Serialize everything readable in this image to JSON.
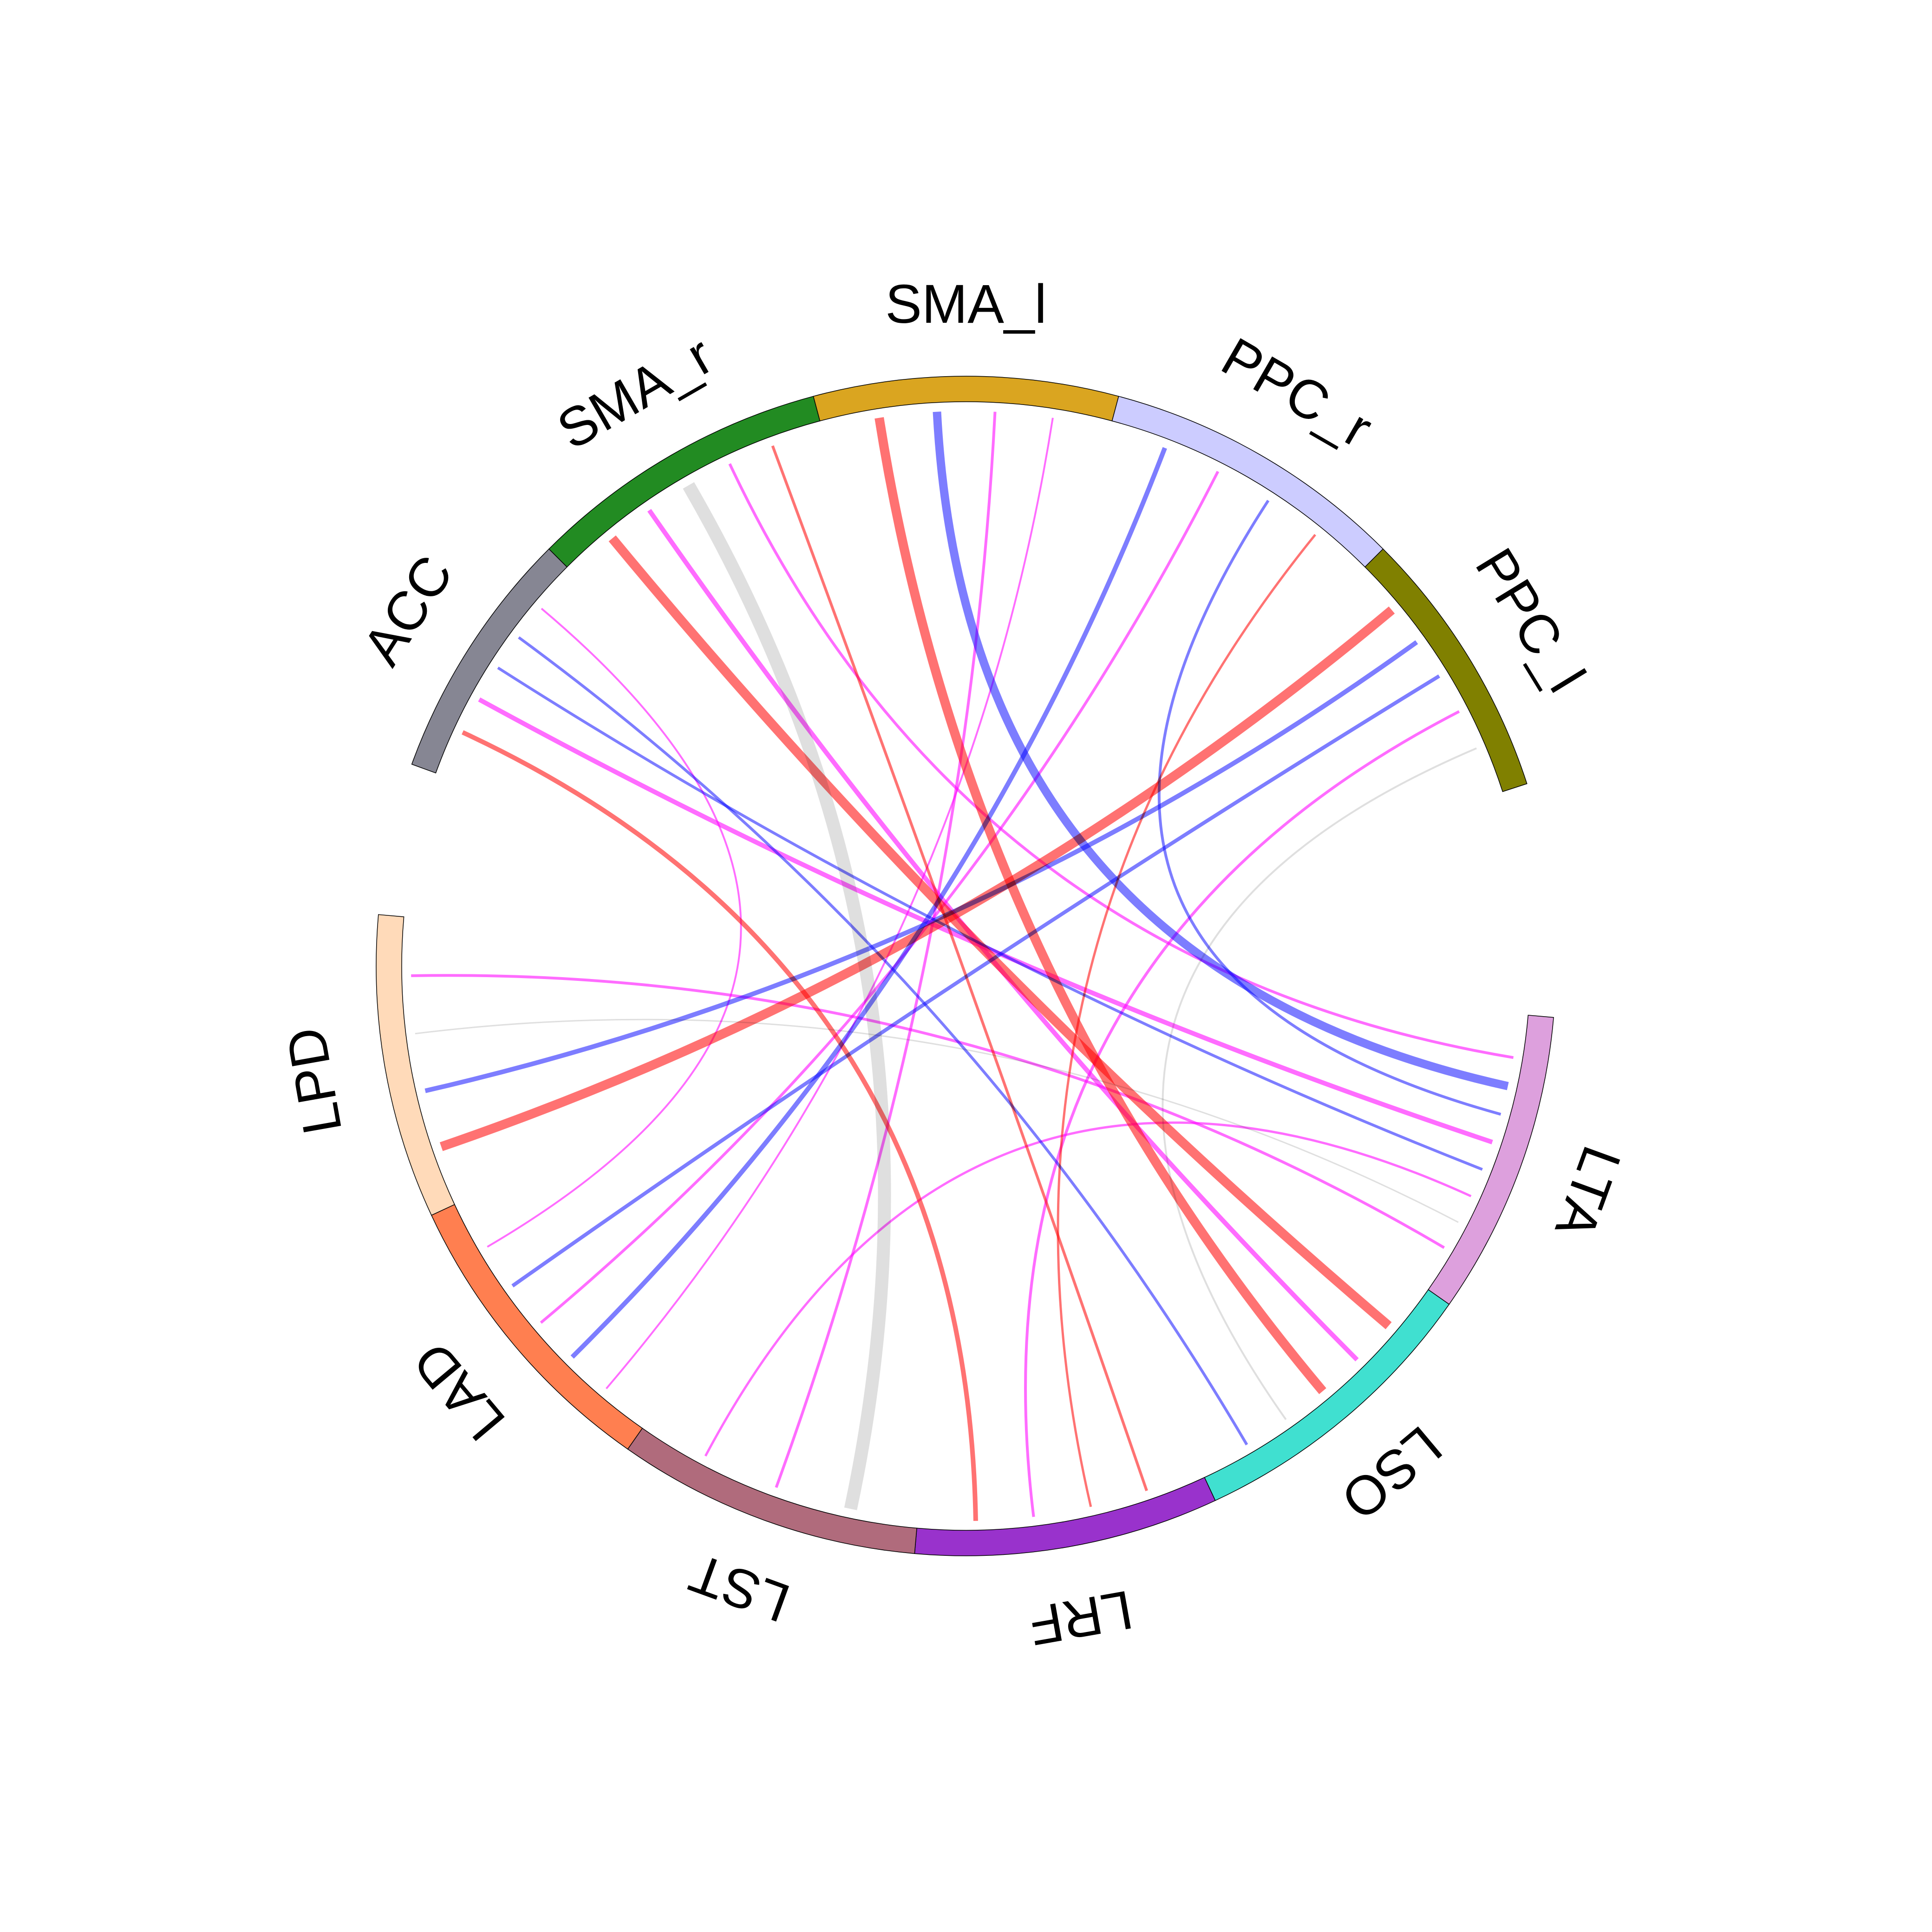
{
  "chart_data": {
    "type": "chord",
    "sectors": [
      {
        "name": "ACC",
        "color": "#868693"
      },
      {
        "name": "SMA_r",
        "color": "#228B22"
      },
      {
        "name": "SMA_l",
        "color": "#DAA520"
      },
      {
        "name": "PPC_r",
        "color": "#CCCCFF"
      },
      {
        "name": "PPC_l",
        "color": "#808000"
      },
      {
        "name": "LTA",
        "color": "#DDA0DD"
      },
      {
        "name": "LSO",
        "color": "#40E0D0"
      },
      {
        "name": "LRF",
        "color": "#9932CC"
      },
      {
        "name": "LST",
        "color": "#B06B7C"
      },
      {
        "name": "LAD",
        "color": "#FF7F50"
      },
      {
        "name": "LPD",
        "color": "#FFDAB9"
      }
    ],
    "link_colors": {
      "red": "#FF3B3B",
      "blue": "#4B4BFF",
      "magenta": "#FF33FF",
      "grey": "#D9D9D9"
    },
    "links": [
      {
        "from": "SMA_r",
        "to": "LSO",
        "color": "red",
        "width": 20
      },
      {
        "from": "SMA_r",
        "to": "LSO",
        "color": "magenta",
        "width": 10
      },
      {
        "from": "SMA_r",
        "to": "LST",
        "color": "grey",
        "width": 28
      },
      {
        "from": "SMA_r",
        "to": "LTA",
        "color": "magenta",
        "width": 6
      },
      {
        "from": "SMA_r",
        "to": "LRF",
        "color": "red",
        "width": 6
      },
      {
        "from": "SMA_l",
        "to": "LSO",
        "color": "red",
        "width": 20
      },
      {
        "from": "SMA_l",
        "to": "LTA",
        "color": "blue",
        "width": 18
      },
      {
        "from": "SMA_l",
        "to": "LST",
        "color": "magenta",
        "width": 6
      },
      {
        "from": "SMA_l",
        "to": "LAD",
        "color": "magenta",
        "width": 4
      },
      {
        "from": "PPC_r",
        "to": "LAD",
        "color": "blue",
        "width": 10
      },
      {
        "from": "PPC_r",
        "to": "LAD",
        "color": "magenta",
        "width": 6
      },
      {
        "from": "PPC_r",
        "to": "LTA",
        "color": "blue",
        "width": 6
      },
      {
        "from": "PPC_r",
        "to": "LRF",
        "color": "red",
        "width": 5
      },
      {
        "from": "PPC_l",
        "to": "LPD",
        "color": "red",
        "width": 20
      },
      {
        "from": "PPC_l",
        "to": "LPD",
        "color": "blue",
        "width": 10
      },
      {
        "from": "PPC_l",
        "to": "LAD",
        "color": "blue",
        "width": 8
      },
      {
        "from": "PPC_l",
        "to": "LRF",
        "color": "magenta",
        "width": 6
      },
      {
        "from": "PPC_l",
        "to": "LSO",
        "color": "grey",
        "width": 4
      },
      {
        "from": "ACC",
        "to": "LRF",
        "color": "red",
        "width": 10
      },
      {
        "from": "ACC",
        "to": "LTA",
        "color": "magenta",
        "width": 10
      },
      {
        "from": "ACC",
        "to": "LTA",
        "color": "blue",
        "width": 6
      },
      {
        "from": "ACC",
        "to": "LSO",
        "color": "blue",
        "width": 6
      },
      {
        "from": "ACC",
        "to": "LAD",
        "color": "magenta",
        "width": 4
      },
      {
        "from": "LTA",
        "to": "LST",
        "color": "magenta",
        "width": 5
      },
      {
        "from": "LTA",
        "to": "LPD",
        "color": "grey",
        "width": 3
      },
      {
        "from": "LPD",
        "to": "LTA",
        "color": "magenta",
        "width": 6
      }
    ]
  }
}
